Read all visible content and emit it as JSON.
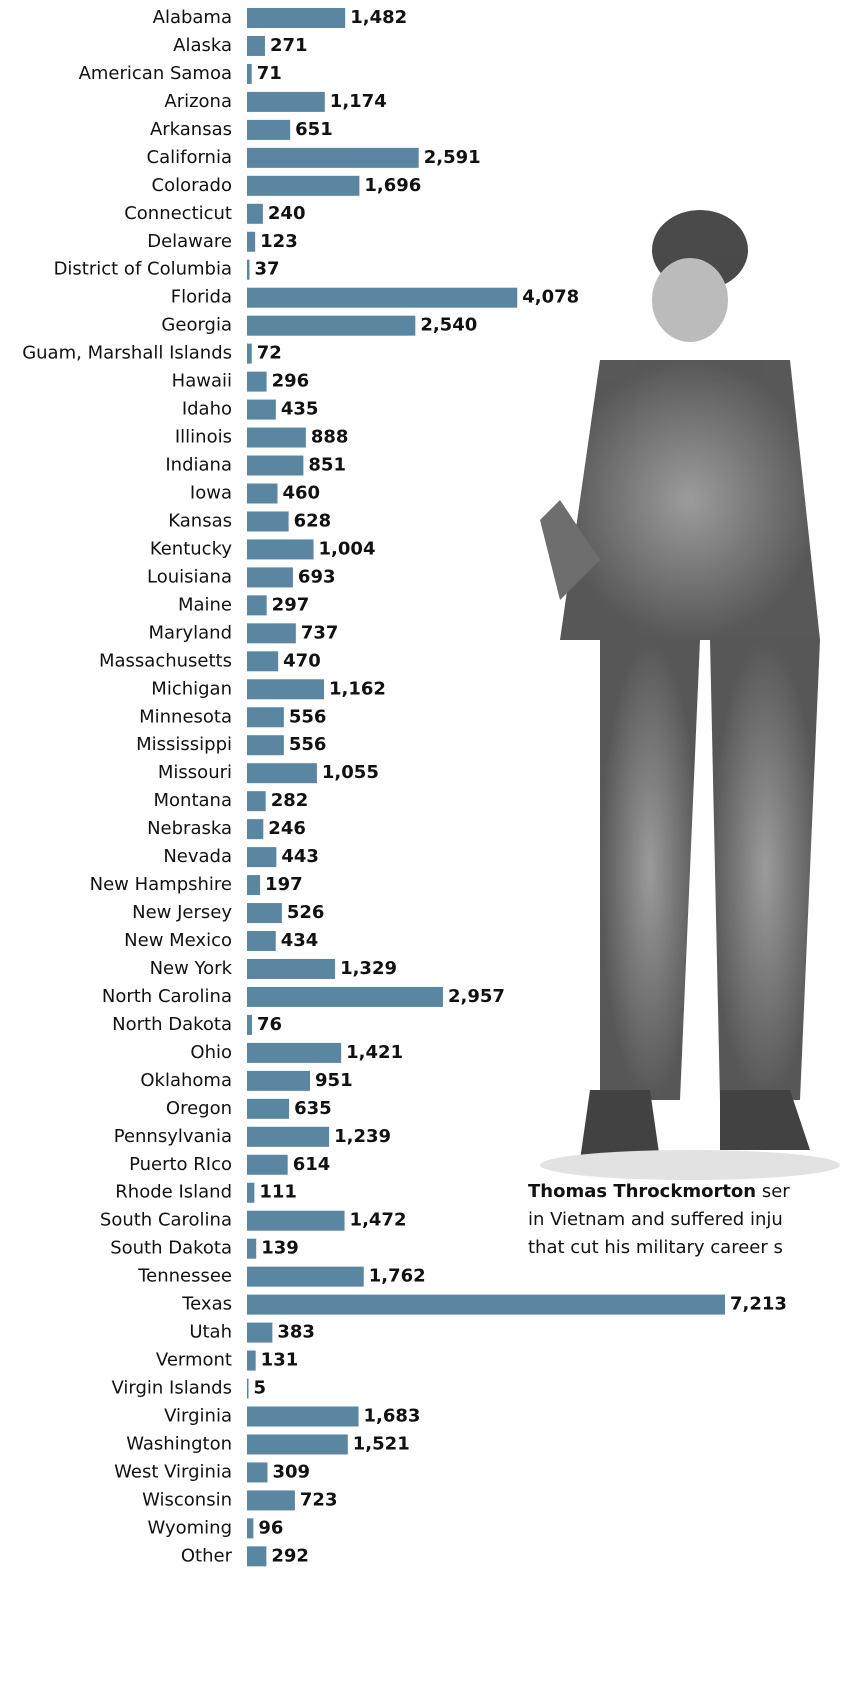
{
  "chart_data": {
    "type": "bar",
    "orientation": "horizontal",
    "color": "#5b86a2",
    "categories": [
      "Alabama",
      "Alaska",
      "American Samoa",
      "Arizona",
      "Arkansas",
      "California",
      "Colorado",
      "Connecticut",
      "Delaware",
      "District of Columbia",
      "Florida",
      "Georgia",
      "Guam, Marshall Islands",
      "Hawaii",
      "Idaho",
      "Illinois",
      "Indiana",
      "Iowa",
      "Kansas",
      "Kentucky",
      "Louisiana",
      "Maine",
      "Maryland",
      "Massachusetts",
      "Michigan",
      "Minnesota",
      "Mississippi",
      "Missouri",
      "Montana",
      "Nebraska",
      "Nevada",
      "New Hampshire",
      "New Jersey",
      "New Mexico",
      "New York",
      "North Carolina",
      "North Dakota",
      "Ohio",
      "Oklahoma",
      "Oregon",
      "Pennsylvania",
      "Puerto RIco",
      "Rhode Island",
      "South Carolina",
      "South Dakota",
      "Tennessee",
      "Texas",
      "Utah",
      "Vermont",
      "Virgin Islands",
      "Virginia",
      "Washington",
      "West Virginia",
      "Wisconsin",
      "Wyoming",
      "Other"
    ],
    "values": [
      1482,
      271,
      71,
      1174,
      651,
      2591,
      1696,
      240,
      123,
      37,
      4078,
      2540,
      72,
      296,
      435,
      888,
      851,
      460,
      628,
      1004,
      693,
      297,
      737,
      470,
      1162,
      556,
      556,
      1055,
      282,
      246,
      443,
      197,
      526,
      434,
      1329,
      2957,
      76,
      1421,
      951,
      635,
      1239,
      614,
      111,
      1472,
      139,
      1762,
      7213,
      383,
      131,
      5,
      1683,
      1521,
      309,
      723,
      96,
      292
    ],
    "value_labels": [
      "1,482",
      "271",
      "71",
      "1,174",
      "651",
      "2,591",
      "1,696",
      "240",
      "123",
      "37",
      "4,078",
      "2,540",
      "72",
      "296",
      "435",
      "888",
      "851",
      "460",
      "628",
      "1,004",
      "693",
      "297",
      "737",
      "470",
      "1,162",
      "556",
      "556",
      "1,055",
      "282",
      "246",
      "443",
      "197",
      "526",
      "434",
      "1,329",
      "2,957",
      "76",
      "1,421",
      "951",
      "635",
      "1,239",
      "614",
      "111",
      "1,472",
      "139",
      "1,762",
      "7,213",
      "383",
      "131",
      "5",
      "1,683",
      "1,521",
      "309",
      "723",
      "96",
      "292"
    ]
  },
  "caption": {
    "name": "Thomas Throckmorton",
    "lines": [
      " ser",
      "in Vietnam and suffered inju",
      "that cut his military career s"
    ]
  }
}
